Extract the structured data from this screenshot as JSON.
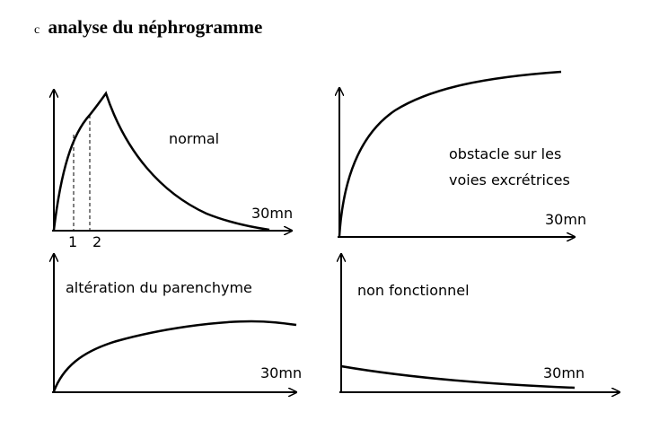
{
  "heading": {
    "prefix": "c",
    "title": "analyse du néphrogramme"
  },
  "panels": [
    {
      "id": "normal",
      "label_lines": [
        "normal"
      ],
      "time_label": "30mn",
      "markers": [
        "1",
        "2"
      ]
    },
    {
      "id": "obstacle",
      "label_lines": [
        "obstacle sur les",
        "voies excrétrices"
      ],
      "time_label": "30mn"
    },
    {
      "id": "parenchyme",
      "label_lines": [
        "altération du parenchyme"
      ],
      "time_label": "30mn"
    },
    {
      "id": "non-fonctionnel",
      "label_lines": [
        "non fonctionnel"
      ],
      "time_label": "30mn"
    }
  ],
  "colors": {
    "ink": "#000000",
    "background": "#ffffff"
  }
}
